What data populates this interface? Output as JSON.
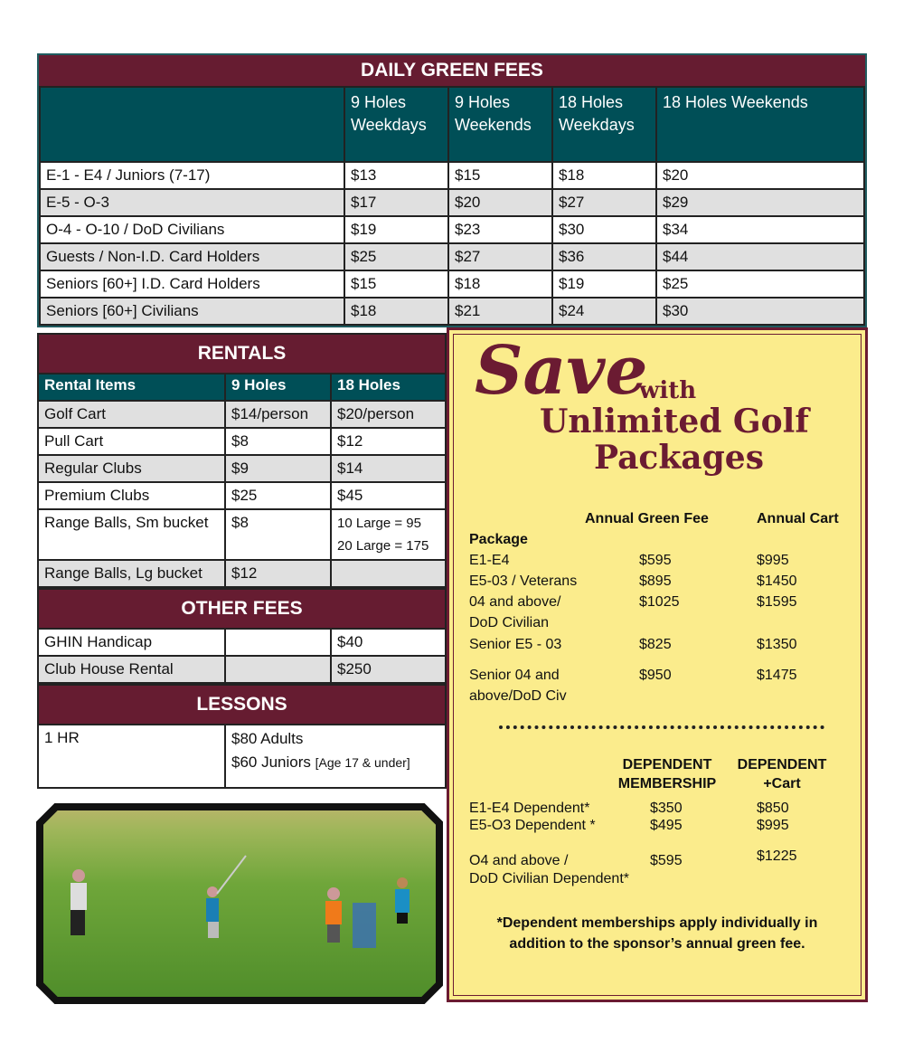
{
  "daily": {
    "title": "DAILY GREEN FEES",
    "headers": [
      "",
      "9 Holes Weekdays",
      "9 Holes Weekends",
      "18 Holes Weekdays",
      "18 Holes Weekends"
    ],
    "rows": [
      [
        "E-1 - E4 / Juniors (7-17)",
        "$13",
        "$15",
        "$18",
        "$20"
      ],
      [
        "E-5 - O-3",
        "$17",
        "$20",
        "$27",
        "$29"
      ],
      [
        "O-4 - O-10 / DoD Civilians",
        "$19",
        "$23",
        "$30",
        "$34"
      ],
      [
        "Guests / Non-I.D. Card Holders",
        "$25",
        "$27",
        "$36",
        "$44"
      ],
      [
        "Seniors [60+] I.D. Card Holders",
        "$15",
        "$18",
        "$19",
        "$25"
      ],
      [
        "Seniors [60+] Civilians",
        "$18",
        "$21",
        "$24",
        "$30"
      ]
    ]
  },
  "rentals": {
    "title": "RENTALS",
    "headers": [
      "Rental Items",
      "9 Holes",
      "18 Holes"
    ],
    "rows": [
      [
        "Golf Cart",
        "$14/person",
        "$20/person"
      ],
      [
        "Pull Cart",
        "$8",
        "$12"
      ],
      [
        "Regular Clubs",
        "$9",
        "$14"
      ],
      [
        "Premium Clubs",
        "$25",
        "$45"
      ],
      [
        "Range Balls, Sm bucket",
        "$8",
        "10 Large = 95"
      ],
      [
        "Range Balls, Lg bucket",
        "$12",
        ""
      ]
    ],
    "range_extra": "20 Large = 175"
  },
  "other": {
    "title": "OTHER FEES",
    "rows": [
      [
        "GHIN Handicap",
        "",
        "$40"
      ],
      [
        "Club House Rental",
        "",
        "$250"
      ]
    ]
  },
  "lessons": {
    "title": "LESSONS",
    "label": "1 HR",
    "adults": "$80 Adults",
    "juniors": "$60 Juniors",
    "juniors_note": "[Age 17 & under]"
  },
  "packages": {
    "save": "Save",
    "with": "with",
    "line1": "Unlimited Golf",
    "line2": "Packages",
    "col1": "Annual Green Fee",
    "col2": "Annual Cart",
    "package_label": "Package",
    "rows": [
      [
        "E1-E4",
        "$595",
        "$995"
      ],
      [
        "E5-03 / Veterans",
        "$895",
        "$1450"
      ],
      [
        "04 and above/",
        "$1025",
        "$1595"
      ],
      [
        "DoD Civilian",
        "",
        ""
      ],
      [
        "Senior E5 - 03",
        "$825",
        "$1350"
      ],
      [
        "Senior 04 and",
        "$950",
        "$1475"
      ],
      [
        "above/DoD Civ",
        "",
        ""
      ]
    ],
    "dep_col1a": "DEPENDENT",
    "dep_col1b": "MEMBERSHIP",
    "dep_col2a": "DEPENDENT",
    "dep_col2b": "+Cart",
    "dep_rows": [
      [
        "E1-E4 Dependent*",
        "$350",
        "$850"
      ],
      [
        "E5-O3 Dependent *",
        "$495",
        "$995"
      ],
      [
        "O4 and above /",
        "$595",
        "$1225"
      ],
      [
        "DoD Civilian Dependent*",
        "",
        ""
      ]
    ],
    "note1": "*Dependent memberships apply individually in",
    "note2": "addition to the sponsor’s annual green fee."
  },
  "colors": {
    "maroon": "#661c31",
    "teal": "#004f57",
    "yellow": "#fbec8c",
    "gray_row": "#e0e0e0"
  }
}
